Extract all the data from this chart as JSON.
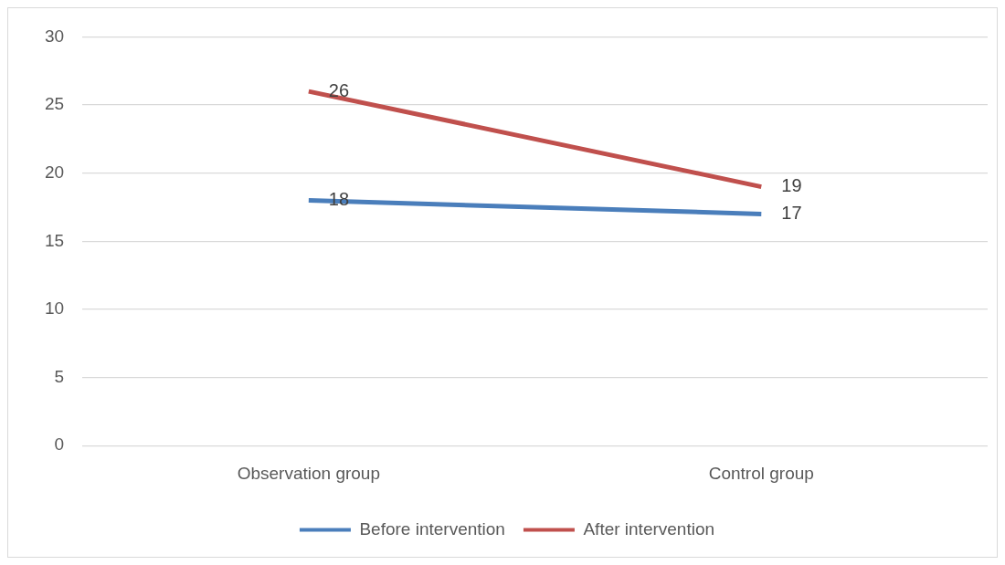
{
  "chart_data": {
    "type": "line",
    "categories": [
      "Observation group",
      "Control group"
    ],
    "series": [
      {
        "name": "Before intervention",
        "color": "#4a7ebb",
        "values": [
          18,
          17
        ]
      },
      {
        "name": "After intervention",
        "color": "#c0504d",
        "values": [
          26,
          19
        ]
      }
    ],
    "ylim": [
      0,
      30
    ],
    "yticks": [
      0,
      5,
      10,
      15,
      20,
      25,
      30
    ],
    "grid": "y",
    "legend": "bottom",
    "data_labels": true,
    "marker": "none",
    "line_style": "solid"
  }
}
